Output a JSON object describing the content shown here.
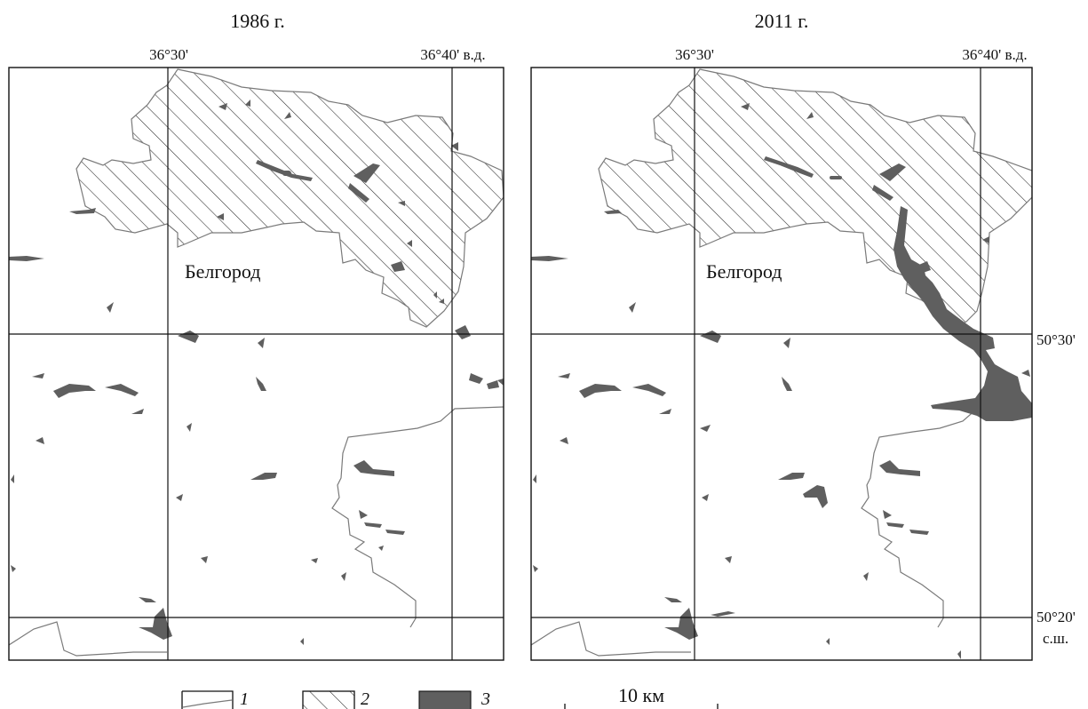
{
  "maps": [
    {
      "year_label": "1986 г.",
      "lon_labels": [
        "36°30'",
        "36°40' в.д."
      ],
      "city_label": "Белгород"
    },
    {
      "year_label": "2011 г.",
      "lon_labels": [
        "36°30'",
        "36°40' в.д."
      ],
      "city_label": "Белгород",
      "lat_labels": [
        "50°30'",
        "50°20'",
        "с.ш."
      ]
    }
  ],
  "legend": {
    "items": [
      {
        "label": "1",
        "symbol": "boundary-line"
      },
      {
        "label": "2",
        "symbol": "hatched-area"
      },
      {
        "label": "3",
        "symbol": "filled-area"
      }
    ],
    "scale_bar": "10 км"
  },
  "colors": {
    "frame": "#111111",
    "water": "#5f5f5f",
    "boundary": "#7a7a7a",
    "hatch": "#2a2a2a"
  }
}
